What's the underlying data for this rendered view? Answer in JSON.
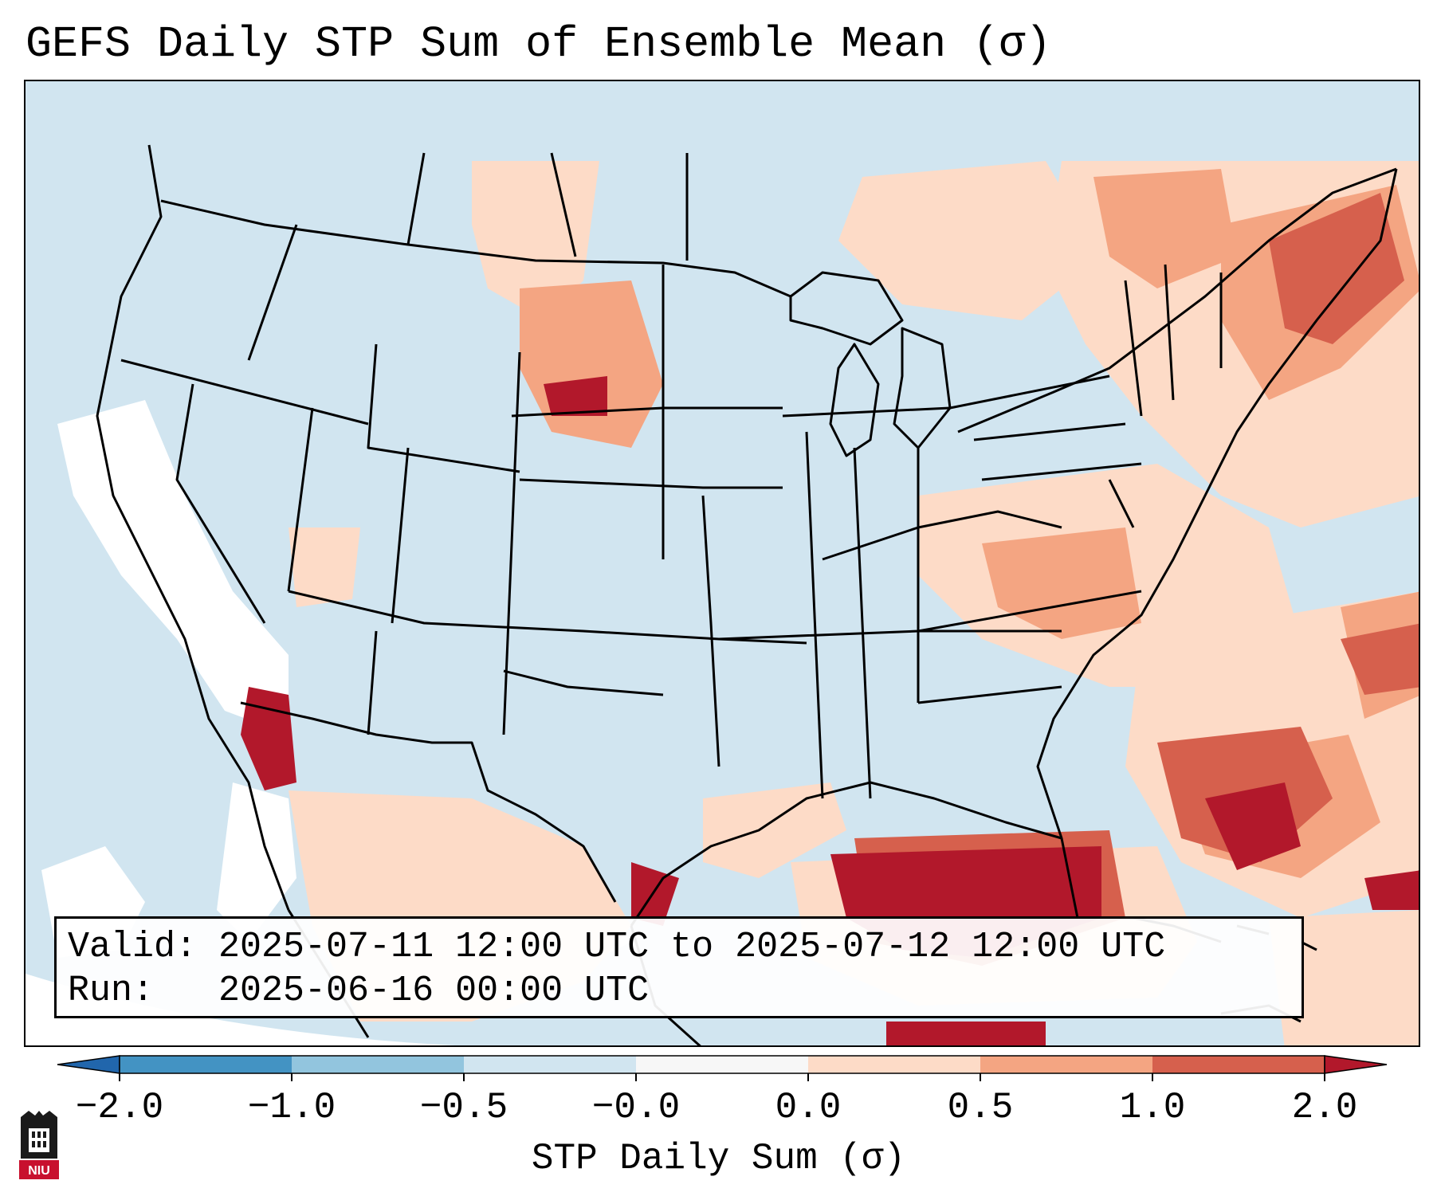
{
  "title": "GEFS Daily STP Sum of Ensemble Mean (σ)",
  "map": {
    "region": "CONUS",
    "bins": [
      {
        "range": "< -2.0",
        "color": "#2166ac"
      },
      {
        "range": "-2.0 to -1.0",
        "color": "#4393c3"
      },
      {
        "range": "-1.0 to -0.5",
        "color": "#92c5de"
      },
      {
        "range": "-0.5 to -0.0",
        "color": "#d1e5f0"
      },
      {
        "range": "-0.0 to 0.0",
        "color": "#f7f7f7"
      },
      {
        "range": "0.0 to 0.5",
        "color": "#fddbc7"
      },
      {
        "range": "0.5 to 1.0",
        "color": "#f4a582"
      },
      {
        "range": "1.0 to 2.0",
        "color": "#d6604d"
      },
      {
        "range": "> 2.0",
        "color": "#b2182b"
      }
    ]
  },
  "info": {
    "valid_line": "Valid: 2025-07-11 12:00 UTC to 2025-07-12 12:00 UTC",
    "run_line": "Run:   2025-06-16 00:00 UTC"
  },
  "colorbar": {
    "label": "STP Daily Sum (σ)",
    "ticks": [
      "−2.0",
      "−1.0",
      "−0.5",
      "−0.0",
      "0.0",
      "0.5",
      "1.0",
      "2.0"
    ]
  },
  "logo": {
    "text": "NIU"
  }
}
